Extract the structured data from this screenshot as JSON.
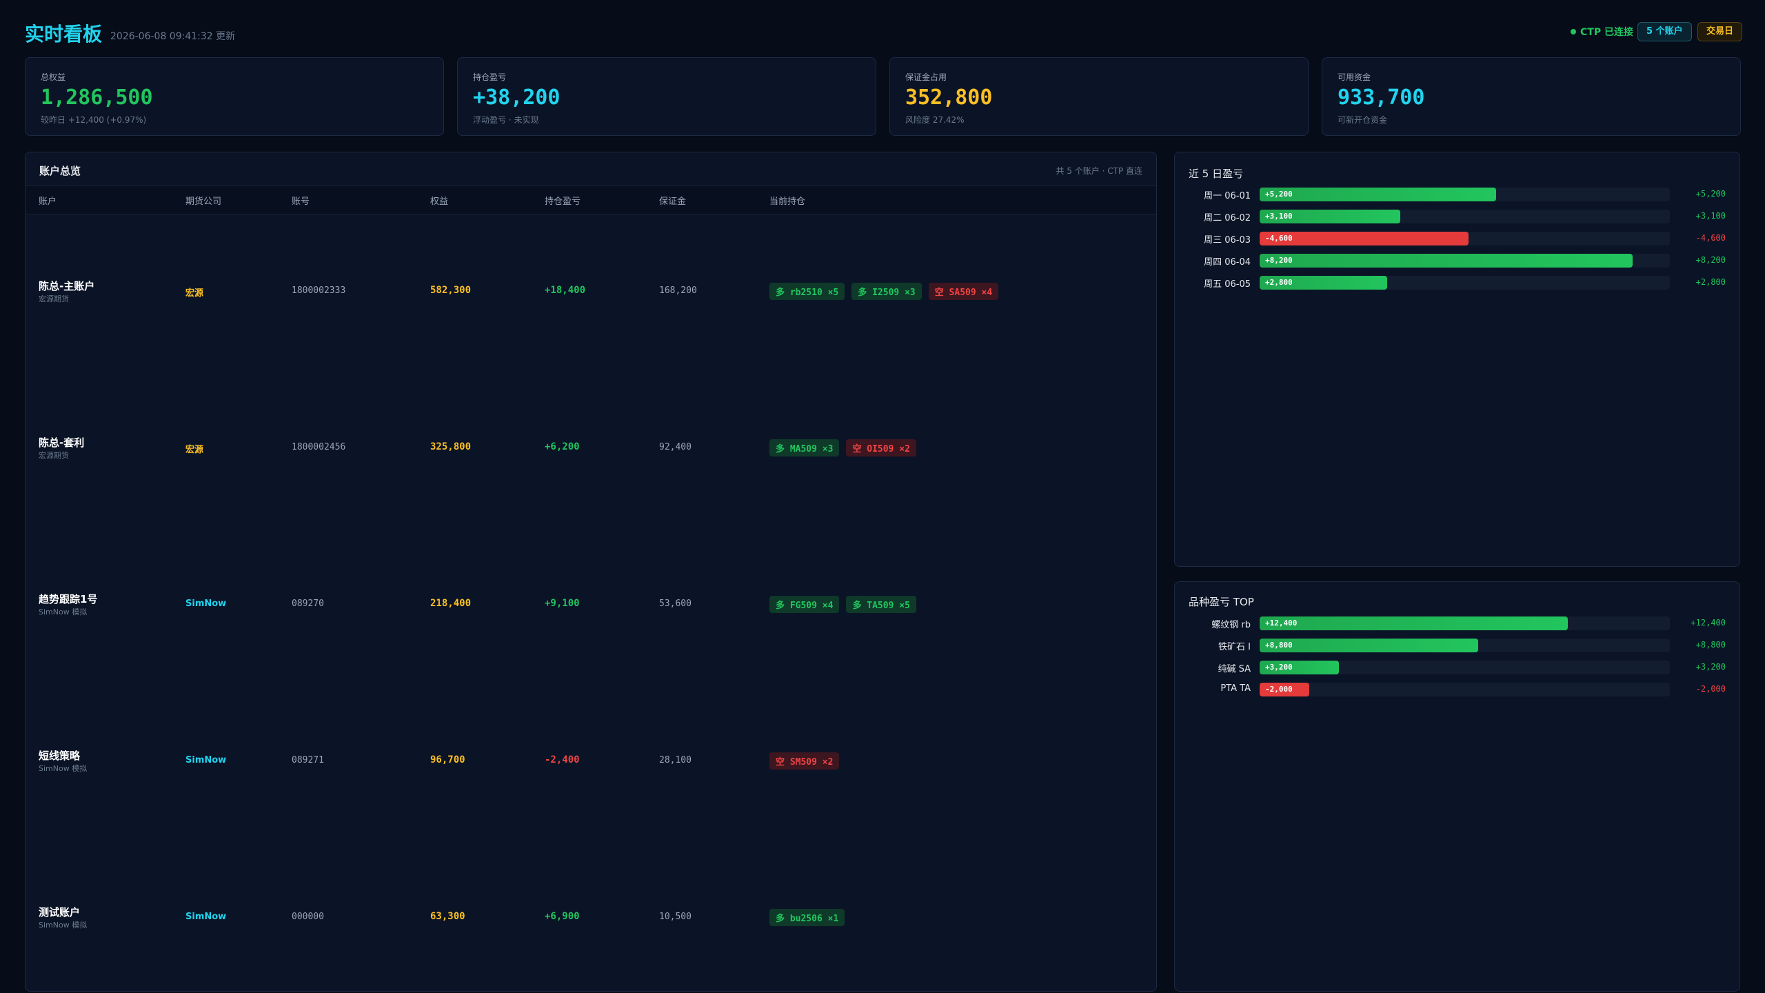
{
  "header": {
    "title": "实时看板",
    "updated": "2026-06-08 09:41:32 更新",
    "status": "CTP 已连接",
    "accounts_badge": "5 个账户",
    "trading_day_badge": "交易日"
  },
  "cards": [
    {
      "label": "总权益",
      "value": "1,286,500",
      "note": "较昨日 +12,400 (+0.97%)",
      "color": "#22c55e"
    },
    {
      "label": "持仓盈亏",
      "value": "+38,200",
      "note": "浮动盈亏 · 未实现",
      "color": "#22d3ee"
    },
    {
      "label": "保证金占用",
      "value": "352,800",
      "note": "风险度 27.42%",
      "color": "#fbbf24"
    },
    {
      "label": "可用资金",
      "value": "933,700",
      "note": "可新开仓资金",
      "color": "#22d3ee"
    }
  ],
  "accounts": {
    "title": "账户总览",
    "note": "共 5 个账户 · CTP 直连",
    "columns": [
      "账户",
      "期货公司",
      "账号",
      "权益",
      "持仓盈亏",
      "保证金",
      "当前持仓"
    ],
    "rows": [
      {
        "name": "陈总-主账户",
        "sub": "宏源期货",
        "broker": "宏源",
        "broker_color": "#fbbf24",
        "account": "1800002333",
        "equity": "582,300",
        "pnl": "+18,400",
        "margin": "168,200",
        "positions": [
          "多 rb2510 ×5",
          "多 I2509 ×3",
          "空 SA509 ×4"
        ]
      },
      {
        "name": "陈总-套利",
        "sub": "宏源期货",
        "broker": "宏源",
        "broker_color": "#fbbf24",
        "account": "1800002456",
        "equity": "325,800",
        "pnl": "+6,200",
        "margin": "92,400",
        "positions": [
          "多 MA509 ×3",
          "空 OI509 ×2"
        ]
      },
      {
        "name": "趋势跟踪1号",
        "sub": "SimNow 模拟",
        "broker": "SimNow",
        "broker_color": "#22d3ee",
        "account": "089270",
        "equity": "218,400",
        "pnl": "+9,100",
        "margin": "53,600",
        "positions": [
          "多 FG509 ×4",
          "多 TA509 ×5"
        ]
      },
      {
        "name": "短线策略",
        "sub": "SimNow 模拟",
        "broker": "SimNow",
        "broker_color": "#22d3ee",
        "account": "089271",
        "equity": "96,700",
        "pnl": "-2,400",
        "margin": "28,100",
        "positions": [
          "空 SM509 ×2"
        ]
      },
      {
        "name": "测试账户",
        "sub": "SimNow 模拟",
        "broker": "SimNow",
        "broker_color": "#22d3ee",
        "account": "000000",
        "equity": "63,300",
        "pnl": "+6,900",
        "margin": "10,500",
        "positions": [
          "多 bu2506 ×1"
        ]
      }
    ]
  },
  "daily_pnl": {
    "title": "近 5 日盈亏",
    "categories": [
      "周一 06-01",
      "周二 06-02",
      "周三 06-03",
      "周四 06-04",
      "周五 06-05"
    ],
    "values": [
      5200,
      3100,
      -4600,
      8200,
      2800
    ],
    "value_labels": [
      "+5,200",
      "+3,100",
      "-4,600",
      "+8,200",
      "+2,800"
    ]
  },
  "symbol_pnl": {
    "title": "品种盈亏 TOP",
    "categories": [
      "螺纹钢 rb",
      "铁矿石 I",
      "纯碱 SA",
      "PTA TA"
    ],
    "values": [
      12400,
      8800,
      3200,
      -2000
    ],
    "value_labels": [
      "+12,400",
      "+8,800",
      "+3,200",
      "-2,000"
    ]
  }
}
